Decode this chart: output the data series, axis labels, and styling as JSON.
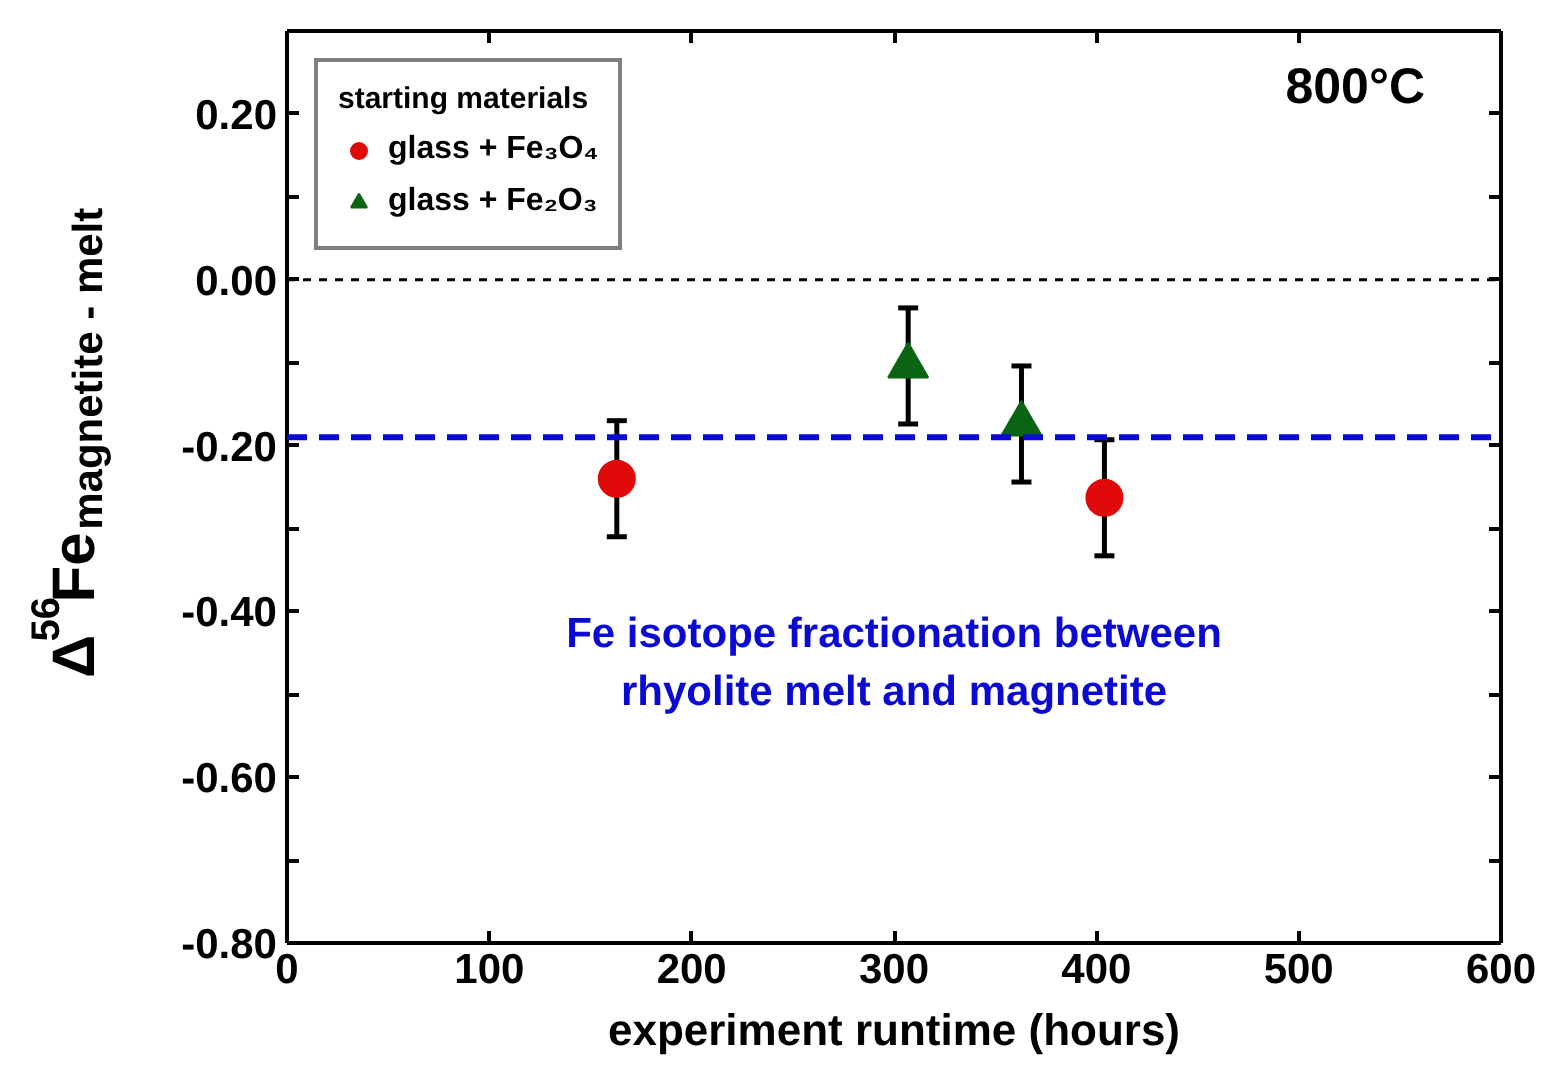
{
  "chart_data": {
    "type": "scatter",
    "xlabel": "experiment runtime (hours)",
    "ylabel": "Δ$^{56}$Fe$_{magnetite - melt}$",
    "legend_title": "starting materials",
    "legend": "top left",
    "annotations": [
      "800°C",
      "Fe isotope fractionation between\nrhyolite melt and magnetite"
    ],
    "series": [
      {
        "name": "glass + Fe₃O₄",
        "color": "#e00a0a",
        "marker": "circle",
        "x": [
          163,
          404
        ],
        "values": [
          -0.24,
          -0.263
        ],
        "errors": [
          0.07,
          0.07
        ]
      },
      {
        "name": "glass + Fe₂O₃",
        "color": "#0a6414",
        "marker": "triangle",
        "x": [
          307,
          363
        ],
        "values": [
          -0.104,
          -0.174
        ],
        "errors": [
          0.07,
          0.07
        ]
      }
    ],
    "ref_lines": [
      {
        "axis": "y",
        "value": 0,
        "color": "#000000",
        "line_style": "dotted"
      },
      {
        "axis": "y",
        "value": -0.19,
        "color": "#0a0ad2",
        "line_style": "dashed"
      }
    ],
    "xlim": [
      0,
      600
    ],
    "xticks": [
      0,
      100,
      200,
      300,
      400,
      500,
      600
    ],
    "ylim": [
      -0.8,
      0.3
    ],
    "yticks": [
      {
        "value": 0.3,
        "label": null
      },
      {
        "value": 0.2,
        "label": "0.20"
      },
      {
        "value": 0.1,
        "label": null
      },
      {
        "value": 0,
        "label": "0.00"
      },
      {
        "value": -0.1,
        "label": null
      },
      {
        "value": -0.2,
        "label": "-0.20"
      },
      {
        "value": -0.3,
        "label": null
      },
      {
        "value": -0.4,
        "label": "-0.40"
      },
      {
        "value": -0.5,
        "label": null
      },
      {
        "value": -0.6,
        "label": "-0.60"
      },
      {
        "value": -0.7,
        "label": null
      },
      {
        "value": -0.8,
        "label": "-0.80"
      }
    ],
    "grid": false
  }
}
